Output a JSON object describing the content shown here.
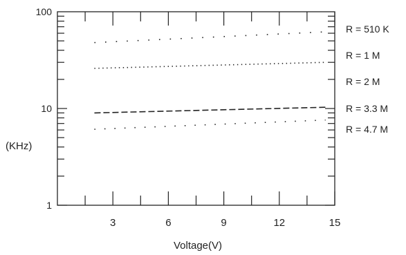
{
  "chart_data": {
    "type": "line",
    "title": "",
    "xlabel": "Voltage(V)",
    "ylabel": "(KHz)",
    "xlim": [
      0,
      15
    ],
    "ylim": [
      1,
      100
    ],
    "y_scale": "log",
    "grid": false,
    "legend_position": "right",
    "x_ticks": [
      3,
      6,
      9,
      12,
      15
    ],
    "x_tick_labels": [
      "3",
      "6",
      "9",
      "12",
      "15"
    ],
    "y_tick_labels": [
      "1",
      "10",
      "100"
    ],
    "series": [
      {
        "name": "R = 510 K",
        "dash": "1.6 14",
        "x": [
          2,
          14.5
        ],
        "y": [
          48,
          62
        ]
      },
      {
        "name": "R = 1 M",
        "dash": "1.4 4.5",
        "x": [
          2,
          14.5
        ],
        "y": [
          26,
          30
        ]
      },
      {
        "name": "R = 2 M",
        "dash": "",
        "x": [],
        "y": []
      },
      {
        "name": "R = 3.3 M",
        "dash": "9 4",
        "x": [
          2,
          14.5
        ],
        "y": [
          9,
          10.3
        ]
      },
      {
        "name": "R = 4.7 M",
        "dash": "1.5 13",
        "x": [
          2,
          14.5
        ],
        "y": [
          6.1,
          7.6
        ]
      }
    ]
  }
}
